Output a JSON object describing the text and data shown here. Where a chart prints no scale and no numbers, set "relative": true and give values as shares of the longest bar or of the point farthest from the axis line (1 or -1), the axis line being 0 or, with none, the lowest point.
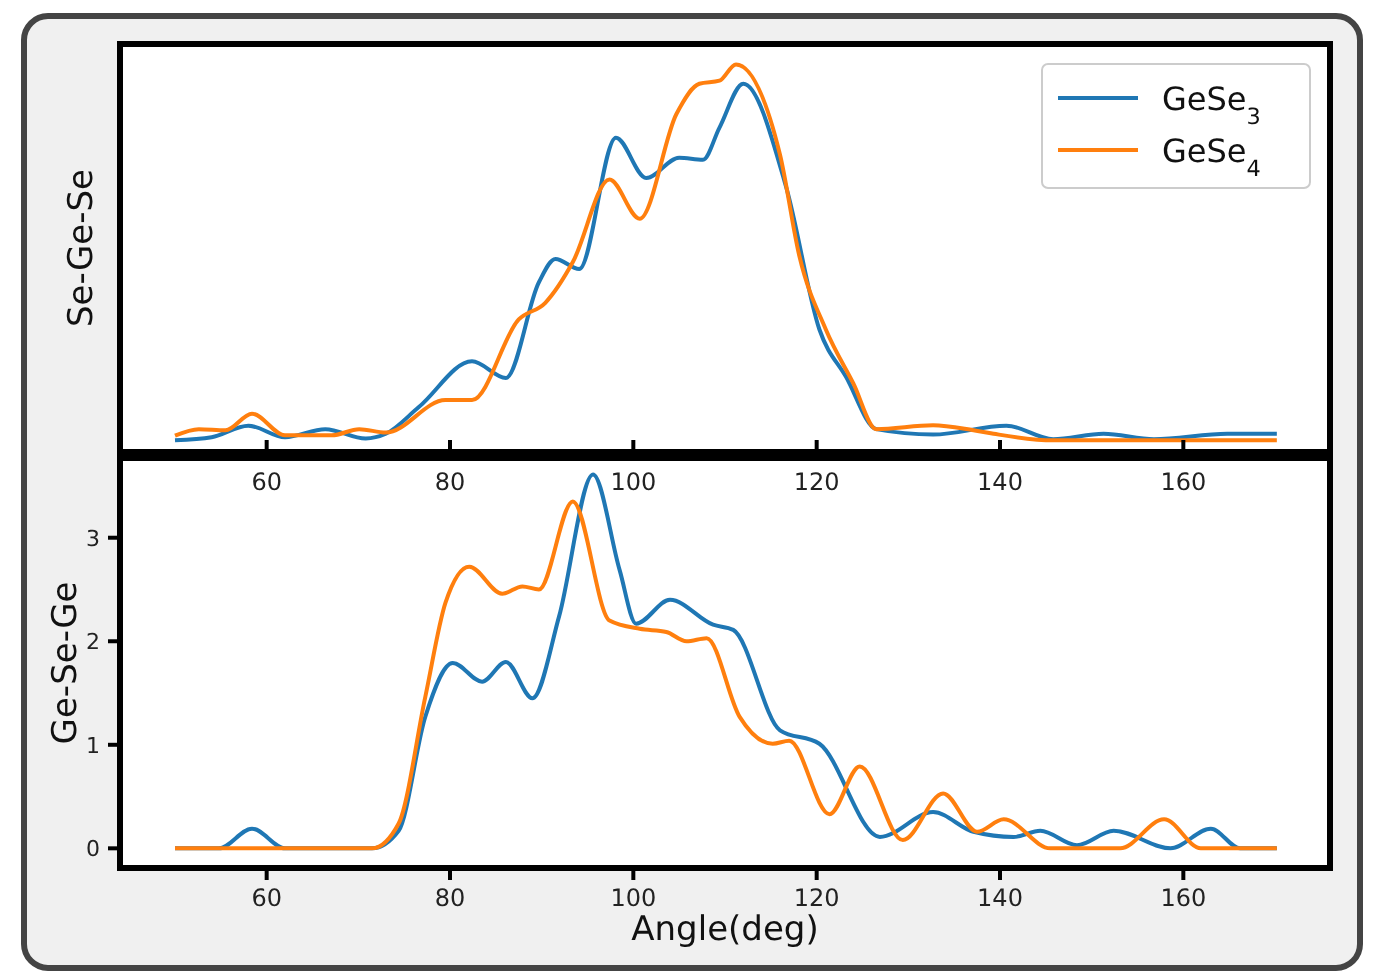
{
  "chart_data": [
    {
      "type": "line",
      "ylabel": "Se-Ge-Se",
      "relative": true,
      "xlim": [
        44,
        176
      ],
      "xticks": [
        60,
        80,
        100,
        120,
        140,
        160
      ],
      "legend": "top right",
      "grid": false,
      "series": [
        {
          "name": "GeSe$_{3}$",
          "color": "#1f77b4",
          "x": [
            50.0,
            54.0,
            58.0,
            62.0,
            66.4,
            70.8,
            73.0,
            76.6,
            82.4,
            86.1,
            89.7,
            91.5,
            94.1,
            98.1,
            101.4,
            105.0,
            107.6,
            109.4,
            112.0,
            116.7,
            120.3,
            123.2,
            126.5,
            132.7,
            140.7,
            145.8,
            151.3,
            156.8,
            164.8,
            170.2
          ],
          "values": [
            0.03,
            0.038,
            0.068,
            0.038,
            0.059,
            0.035,
            0.047,
            0.116,
            0.234,
            0.191,
            0.438,
            0.498,
            0.472,
            0.811,
            0.707,
            0.759,
            0.754,
            0.837,
            0.95,
            0.681,
            0.316,
            0.194,
            0.059,
            0.045,
            0.068,
            0.033,
            0.047,
            0.033,
            0.047,
            0.047
          ]
        },
        {
          "name": "GeSe$_{4}$",
          "color": "#ff7f0e",
          "x": [
            50.0,
            52.6,
            55.5,
            58.4,
            62.0,
            67.1,
            70.1,
            73.0,
            79.5,
            82.4,
            87.5,
            90.4,
            93.4,
            97.4,
            100.7,
            104.7,
            107.2,
            109.4,
            111.2,
            116.0,
            118.1,
            121.0,
            124.0,
            126.5,
            132.7,
            137.1,
            139.3,
            145.8,
            160.4,
            170.2
          ],
          "values": [
            0.042,
            0.059,
            0.056,
            0.099,
            0.043,
            0.043,
            0.059,
            0.05,
            0.134,
            0.134,
            0.342,
            0.385,
            0.49,
            0.703,
            0.602,
            0.872,
            0.95,
            0.958,
            1.0,
            0.767,
            0.507,
            0.316,
            0.177,
            0.059,
            0.069,
            0.056,
            0.047,
            0.03,
            0.03,
            0.03
          ]
        }
      ]
    },
    {
      "type": "line",
      "ylabel": "Ge-Se-Ge",
      "xlabel": "Angle(deg)",
      "xlim": [
        44,
        176
      ],
      "xticks": [
        60,
        80,
        100,
        120,
        140,
        160
      ],
      "ylim": [
        -0.19,
        3.77
      ],
      "yticks": [
        0,
        1,
        2,
        3
      ],
      "grid": false,
      "series": [
        {
          "color": "#1f77b4",
          "x": [
            50.0,
            54.8,
            58.4,
            62.0,
            71.5,
            74.4,
            77.3,
            80.3,
            83.5,
            86.1,
            89.0,
            91.9,
            95.6,
            98.5,
            100.3,
            104.0,
            108.7,
            110.9,
            116.0,
            120.3,
            126.9,
            132.7,
            137.1,
            141.5,
            144.4,
            148.4,
            152.4,
            158.6,
            163.0,
            166.2,
            170.2
          ],
          "values": [
            0,
            0,
            0.19,
            0,
            0,
            0.17,
            1.27,
            1.79,
            1.61,
            1.8,
            1.45,
            2.24,
            3.61,
            2.69,
            2.17,
            2.4,
            2.16,
            2.11,
            1.14,
            1.01,
            0.11,
            0.35,
            0.16,
            0.11,
            0.17,
            0.03,
            0.17,
            0,
            0.19,
            0,
            0
          ]
        },
        {
          "color": "#ff7f0e",
          "x": [
            50.0,
            71.5,
            74.4,
            77.3,
            79.5,
            82.1,
            85.7,
            87.9,
            89.7,
            93.4,
            97.4,
            100.7,
            103.6,
            105.8,
            108.0,
            111.6,
            115.2,
            117.0,
            121.4,
            124.7,
            129.4,
            133.8,
            137.5,
            140.4,
            145.5,
            153.1,
            157.9,
            161.9,
            170.2
          ],
          "values": [
            0,
            0,
            0.24,
            1.46,
            2.37,
            2.72,
            2.46,
            2.53,
            2.5,
            3.35,
            2.2,
            2.12,
            2.09,
            2.0,
            2.03,
            1.27,
            1.01,
            1.04,
            0.33,
            0.79,
            0.08,
            0.53,
            0.16,
            0.28,
            0,
            0,
            0.28,
            0,
            0
          ]
        }
      ]
    }
  ]
}
